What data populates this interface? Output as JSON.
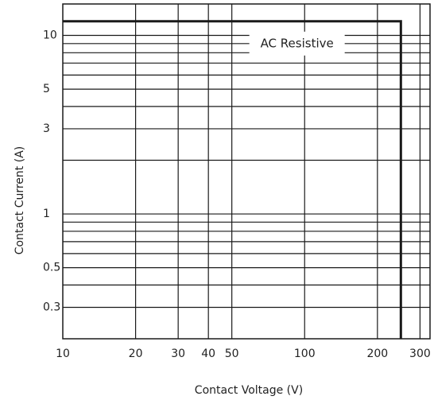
{
  "chart_data": {
    "type": "line",
    "xlabel": "Contact Voltage (V)",
    "ylabel": "Contact Current (A)",
    "x_scale": "log",
    "y_scale": "log",
    "xlim": [
      10,
      330
    ],
    "ylim": [
      0.2,
      15
    ],
    "grid": true,
    "x_gridlines": [
      20,
      30,
      40,
      50,
      100,
      200,
      300
    ],
    "y_gridlines": [
      0.3,
      0.4,
      0.5,
      0.6,
      0.7,
      0.8,
      0.9,
      1,
      2,
      3,
      4,
      5,
      6,
      7,
      8,
      9,
      10
    ],
    "x_ticks": [
      {
        "value": 10,
        "label": "10"
      },
      {
        "value": 20,
        "label": "20"
      },
      {
        "value": 30,
        "label": "30"
      },
      {
        "value": 40,
        "label": "40"
      },
      {
        "value": 50,
        "label": "50"
      },
      {
        "value": 100,
        "label": "100"
      },
      {
        "value": 200,
        "label": "200"
      },
      {
        "value": 300,
        "label": "300"
      }
    ],
    "y_ticks": [
      {
        "value": 10,
        "label": "10"
      },
      {
        "value": 5,
        "label": "5"
      },
      {
        "value": 3,
        "label": "3"
      },
      {
        "value": 1,
        "label": "1"
      },
      {
        "value": 0.5,
        "label": "0.5"
      },
      {
        "value": 0.3,
        "label": "0.3"
      }
    ],
    "series": [
      {
        "name": "AC Resistive",
        "x": [
          10,
          250,
          250
        ],
        "y": [
          12,
          12,
          0.2
        ]
      }
    ],
    "annotations": [
      {
        "text": "AC Resistive",
        "x": 93,
        "y": 9
      }
    ]
  }
}
